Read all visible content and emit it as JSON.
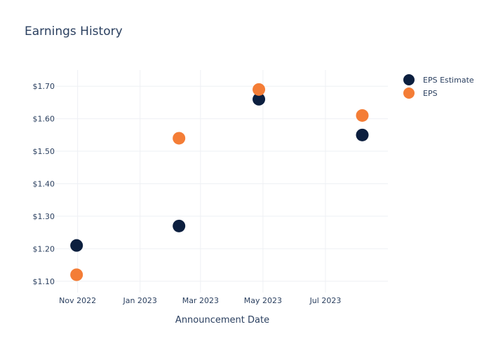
{
  "chart_data": {
    "type": "scatter",
    "title": "Earnings History",
    "xlabel": "Announcement Date",
    "ylabel": "",
    "x_ticks": [
      {
        "date": "2022-11-01",
        "label": "Nov 2022"
      },
      {
        "date": "2023-01-01",
        "label": "Jan 2023"
      },
      {
        "date": "2023-03-01",
        "label": "Mar 2023"
      },
      {
        "date": "2023-05-01",
        "label": "May 2023"
      },
      {
        "date": "2023-07-01",
        "label": "Jul 2023"
      }
    ],
    "y_ticks": [
      {
        "value": 1.1,
        "label": "$1.10"
      },
      {
        "value": 1.2,
        "label": "$1.20"
      },
      {
        "value": 1.3,
        "label": "$1.30"
      },
      {
        "value": 1.4,
        "label": "$1.40"
      },
      {
        "value": 1.5,
        "label": "$1.50"
      },
      {
        "value": 1.6,
        "label": "$1.60"
      },
      {
        "value": 1.7,
        "label": "$1.70"
      }
    ],
    "xlim": [
      "2022-10-11",
      "2023-08-31"
    ],
    "ylim": [
      1.065,
      1.75
    ],
    "grid": true,
    "legend_position": "top-right",
    "series": [
      {
        "name": "EPS Estimate",
        "color": "#0c1f3f",
        "points": [
          {
            "x": "2022-10-31",
            "y": 1.21
          },
          {
            "x": "2023-02-08",
            "y": 1.27
          },
          {
            "x": "2023-04-27",
            "y": 1.66
          },
          {
            "x": "2023-08-06",
            "y": 1.55
          }
        ]
      },
      {
        "name": "EPS",
        "color": "#f47d36",
        "points": [
          {
            "x": "2022-10-31",
            "y": 1.12
          },
          {
            "x": "2023-02-08",
            "y": 1.54
          },
          {
            "x": "2023-04-27",
            "y": 1.69
          },
          {
            "x": "2023-08-06",
            "y": 1.61
          }
        ]
      }
    ]
  }
}
